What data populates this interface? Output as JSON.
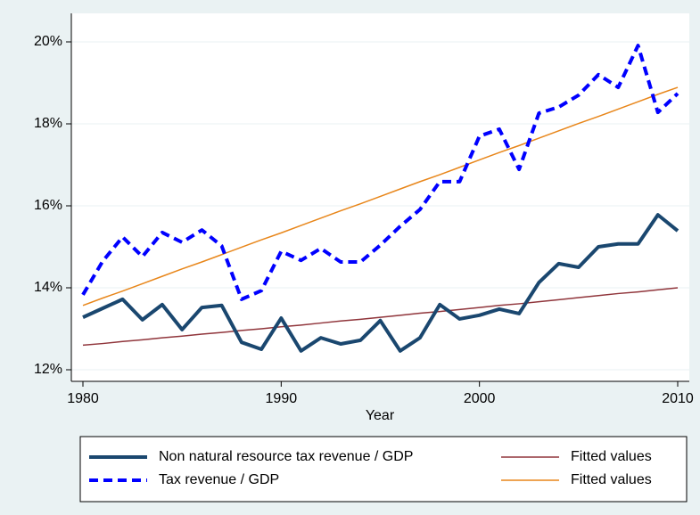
{
  "chart_data": {
    "type": "line",
    "x_label": "Year",
    "x": [
      1980,
      1981,
      1982,
      1983,
      1984,
      1985,
      1986,
      1987,
      1988,
      1989,
      1990,
      1991,
      1992,
      1993,
      1994,
      1995,
      1996,
      1997,
      1998,
      1999,
      2000,
      2001,
      2002,
      2003,
      2004,
      2005,
      2006,
      2007,
      2008,
      2009,
      2010
    ],
    "series": [
      {
        "name": "Non natural resource tax revenue / GDP",
        "color": "#1a476f",
        "dash": false,
        "width": 4,
        "values": [
          13.28,
          13.5,
          13.72,
          13.22,
          13.59,
          12.98,
          13.52,
          13.57,
          12.67,
          12.5,
          13.26,
          12.46,
          12.78,
          12.63,
          12.72,
          13.2,
          12.46,
          12.78,
          13.59,
          13.24,
          13.33,
          13.48,
          13.37,
          14.13,
          14.59,
          14.5,
          15.0,
          15.07,
          15.07,
          15.78,
          15.39
        ]
      },
      {
        "name": "Tax revenue / GDP",
        "color": "#0000ff",
        "dash": true,
        "width": 4,
        "values": [
          13.83,
          14.65,
          15.24,
          14.76,
          15.35,
          15.11,
          15.41,
          15.02,
          13.72,
          13.93,
          14.89,
          14.67,
          14.96,
          14.63,
          14.63,
          15.04,
          15.5,
          15.91,
          16.59,
          16.59,
          17.7,
          17.87,
          16.89,
          18.26,
          18.41,
          18.7,
          19.2,
          18.89,
          19.91,
          18.28,
          18.74
        ]
      },
      {
        "name": "Fitted values",
        "color": "#90353b",
        "dash": false,
        "width": 1.5,
        "values": [
          12.6,
          12.64,
          12.69,
          12.73,
          12.78,
          12.82,
          12.87,
          12.91,
          12.96,
          13.0,
          13.05,
          13.09,
          13.14,
          13.19,
          13.23,
          13.28,
          13.33,
          13.38,
          13.42,
          13.47,
          13.52,
          13.57,
          13.61,
          13.66,
          13.71,
          13.76,
          13.81,
          13.86,
          13.9,
          13.95,
          14.0
        ]
      },
      {
        "name": "Fitted values",
        "color": "#e8861a",
        "dash": false,
        "width": 1.5,
        "values": [
          13.57,
          13.75,
          13.92,
          14.1,
          14.28,
          14.46,
          14.63,
          14.81,
          14.99,
          15.17,
          15.34,
          15.52,
          15.7,
          15.88,
          16.05,
          16.23,
          16.41,
          16.59,
          16.76,
          16.94,
          17.12,
          17.3,
          17.47,
          17.65,
          17.83,
          18.01,
          18.18,
          18.36,
          18.54,
          18.72,
          18.89
        ]
      }
    ],
    "xlim": [
      1980,
      2010
    ],
    "xticks": [
      1980,
      1990,
      2000,
      2010
    ],
    "ylim": [
      12,
      20
    ],
    "yticks": [
      {
        "value": 12,
        "label": "12%"
      },
      {
        "value": 14,
        "label": "14%"
      },
      {
        "value": 16,
        "label": "16%"
      },
      {
        "value": 18,
        "label": "18%"
      },
      {
        "value": 20,
        "label": "20%"
      }
    ],
    "grid": true,
    "legend": "bottom"
  }
}
